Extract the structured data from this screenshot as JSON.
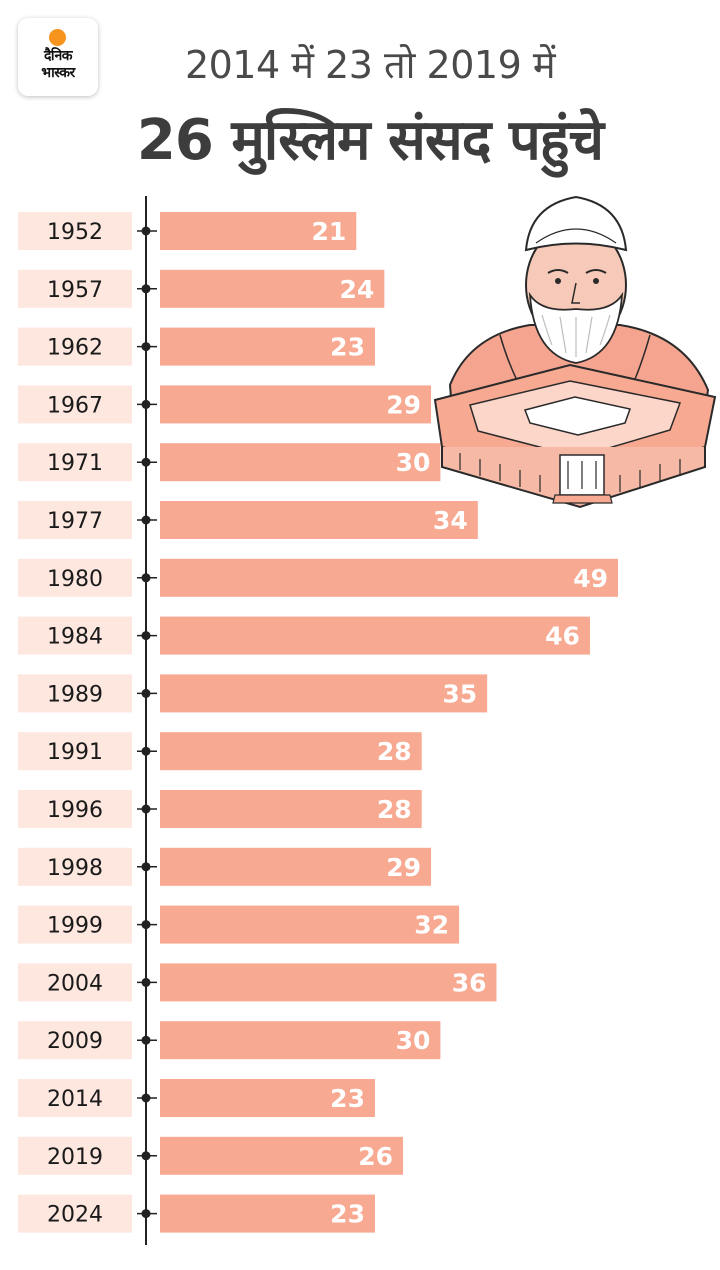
{
  "brand": {
    "logo_text": "दैनिक\nभास्कर",
    "accent": "#f7941d"
  },
  "header": {
    "line1": "2014 में 23 तो 2019 में",
    "line2": "26 मुस्लिम संसद पहुंचे"
  },
  "colors": {
    "bar": "#f8a991",
    "year_box": "#fde7df",
    "axis": "#222222"
  },
  "illustration": {
    "icon": "parliament-with-leader-bust-illustration"
  },
  "chart_data": {
    "type": "bar",
    "orientation": "horizontal",
    "categories": [
      "1952",
      "1957",
      "1962",
      "1967",
      "1971",
      "1977",
      "1980",
      "1984",
      "1989",
      "1991",
      "1996",
      "1998",
      "1999",
      "2004",
      "2009",
      "2014",
      "2019",
      "2024"
    ],
    "values": [
      21,
      24,
      23,
      29,
      30,
      34,
      49,
      46,
      35,
      28,
      28,
      29,
      32,
      36,
      30,
      23,
      26,
      23
    ],
    "title": "",
    "xlabel": "",
    "ylabel": "",
    "xlim": [
      0,
      49
    ],
    "grid": false,
    "legend": "none"
  }
}
